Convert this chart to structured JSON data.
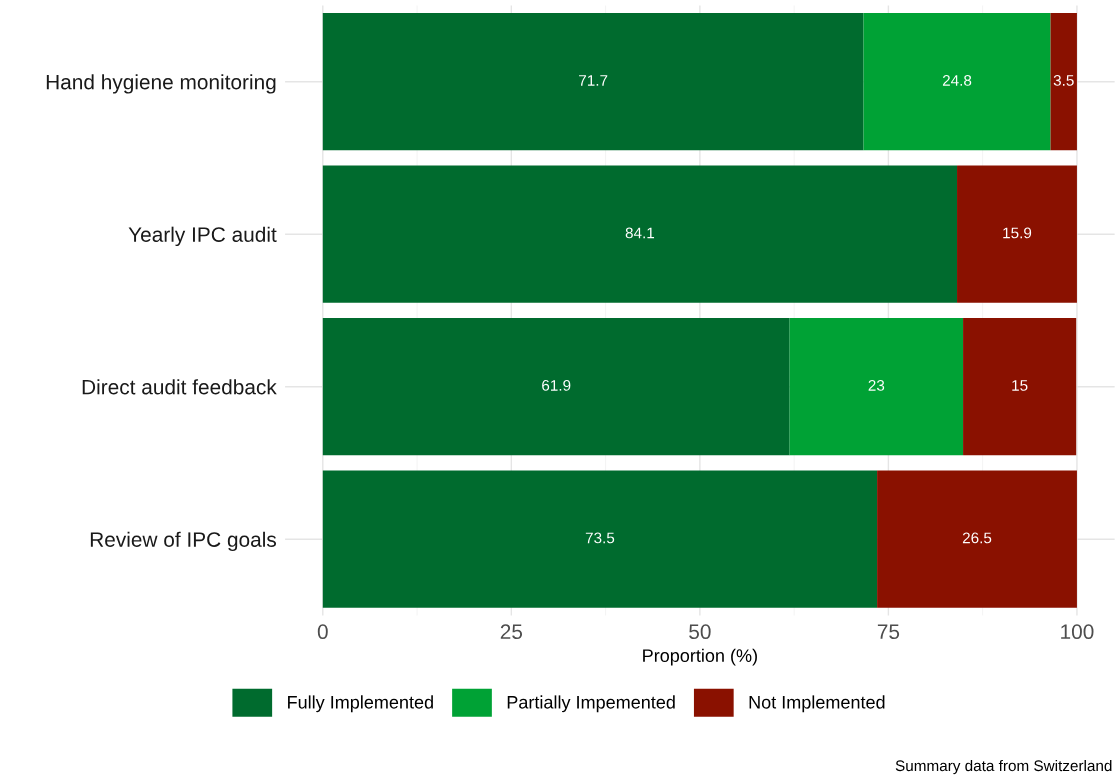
{
  "chart_data": {
    "type": "bar",
    "orientation": "horizontal",
    "stacked": true,
    "categories": [
      "Hand hygiene monitoring",
      "Yearly IPC audit",
      "Direct audit feedback",
      "Review of IPC goals"
    ],
    "series": [
      {
        "name": "Fully Implemented",
        "color": "#006b2e",
        "values": [
          71.7,
          84.1,
          61.9,
          73.5
        ]
      },
      {
        "name": "Partially Impemented",
        "color": "#00a235",
        "values": [
          24.8,
          null,
          23,
          null
        ]
      },
      {
        "name": "Not Implemented",
        "color": "#8a1100",
        "values": [
          3.5,
          15.9,
          15,
          26.5
        ]
      }
    ],
    "xlim": [
      -5,
      105
    ],
    "xticks": [
      0,
      25,
      50,
      75,
      100
    ],
    "xlabel": "Proportion (%)",
    "data_labels": true,
    "grid": true,
    "legend": "bottom",
    "annotations": [
      "Summary data from Switzerland"
    ]
  }
}
